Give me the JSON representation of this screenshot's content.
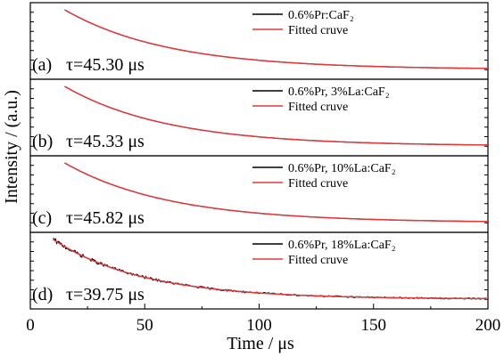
{
  "chart_data": {
    "type": "line",
    "xlabel": "Time / μs",
    "ylabel": "Intensity / (a.u.)",
    "xlim": [
      0,
      200
    ],
    "xticks": [
      "0",
      "50",
      "100",
      "150",
      "200"
    ],
    "y_scale": "linear, arbitrary units, no tick labels",
    "grid": false,
    "legend_position": "top-right of each panel",
    "panels": [
      {
        "label": "(a)",
        "tau_label": "τ=45.30 μs",
        "tau_us": 45.3,
        "t_start_us": 15,
        "noise": 0.0,
        "series": [
          {
            "name": "0.6%Pr:CaF2",
            "legend": "0.6%Pr:CaF₂",
            "color": "#000000"
          },
          {
            "name": "Fitted cruve",
            "legend": "Fitted cruve",
            "color": "#e0393b"
          }
        ]
      },
      {
        "label": "(b)",
        "tau_label": "τ=45.33 μs",
        "tau_us": 45.33,
        "t_start_us": 15,
        "noise": 0.0,
        "series": [
          {
            "name": "0.6%Pr, 3%La:CaF2",
            "legend": "0.6%Pr, 3%La:CaF₂",
            "color": "#000000"
          },
          {
            "name": "Fitted cruve",
            "legend": "Fitted cruve",
            "color": "#e0393b"
          }
        ]
      },
      {
        "label": "(c)",
        "tau_label": "τ=45.82 μs",
        "tau_us": 45.82,
        "t_start_us": 15,
        "noise": 0.0,
        "series": [
          {
            "name": "0.6%Pr, 10%La:CaF2",
            "legend": "0.6%Pr, 10%La:CaF₂",
            "color": "#000000"
          },
          {
            "name": "Fitted cruve",
            "legend": "Fitted cruve",
            "color": "#e0393b"
          }
        ]
      },
      {
        "label": "(d)",
        "tau_label": "τ=39.75 μs",
        "tau_us": 39.75,
        "t_start_us": 10,
        "noise": 0.025,
        "series": [
          {
            "name": "0.6%Pr, 18%La:CaF2",
            "legend": "0.6%Pr, 18%La:CaF₂",
            "color": "#000000"
          },
          {
            "name": "Fitted cruve",
            "legend": "Fitted cruve",
            "color": "#e0393b"
          }
        ]
      }
    ]
  }
}
